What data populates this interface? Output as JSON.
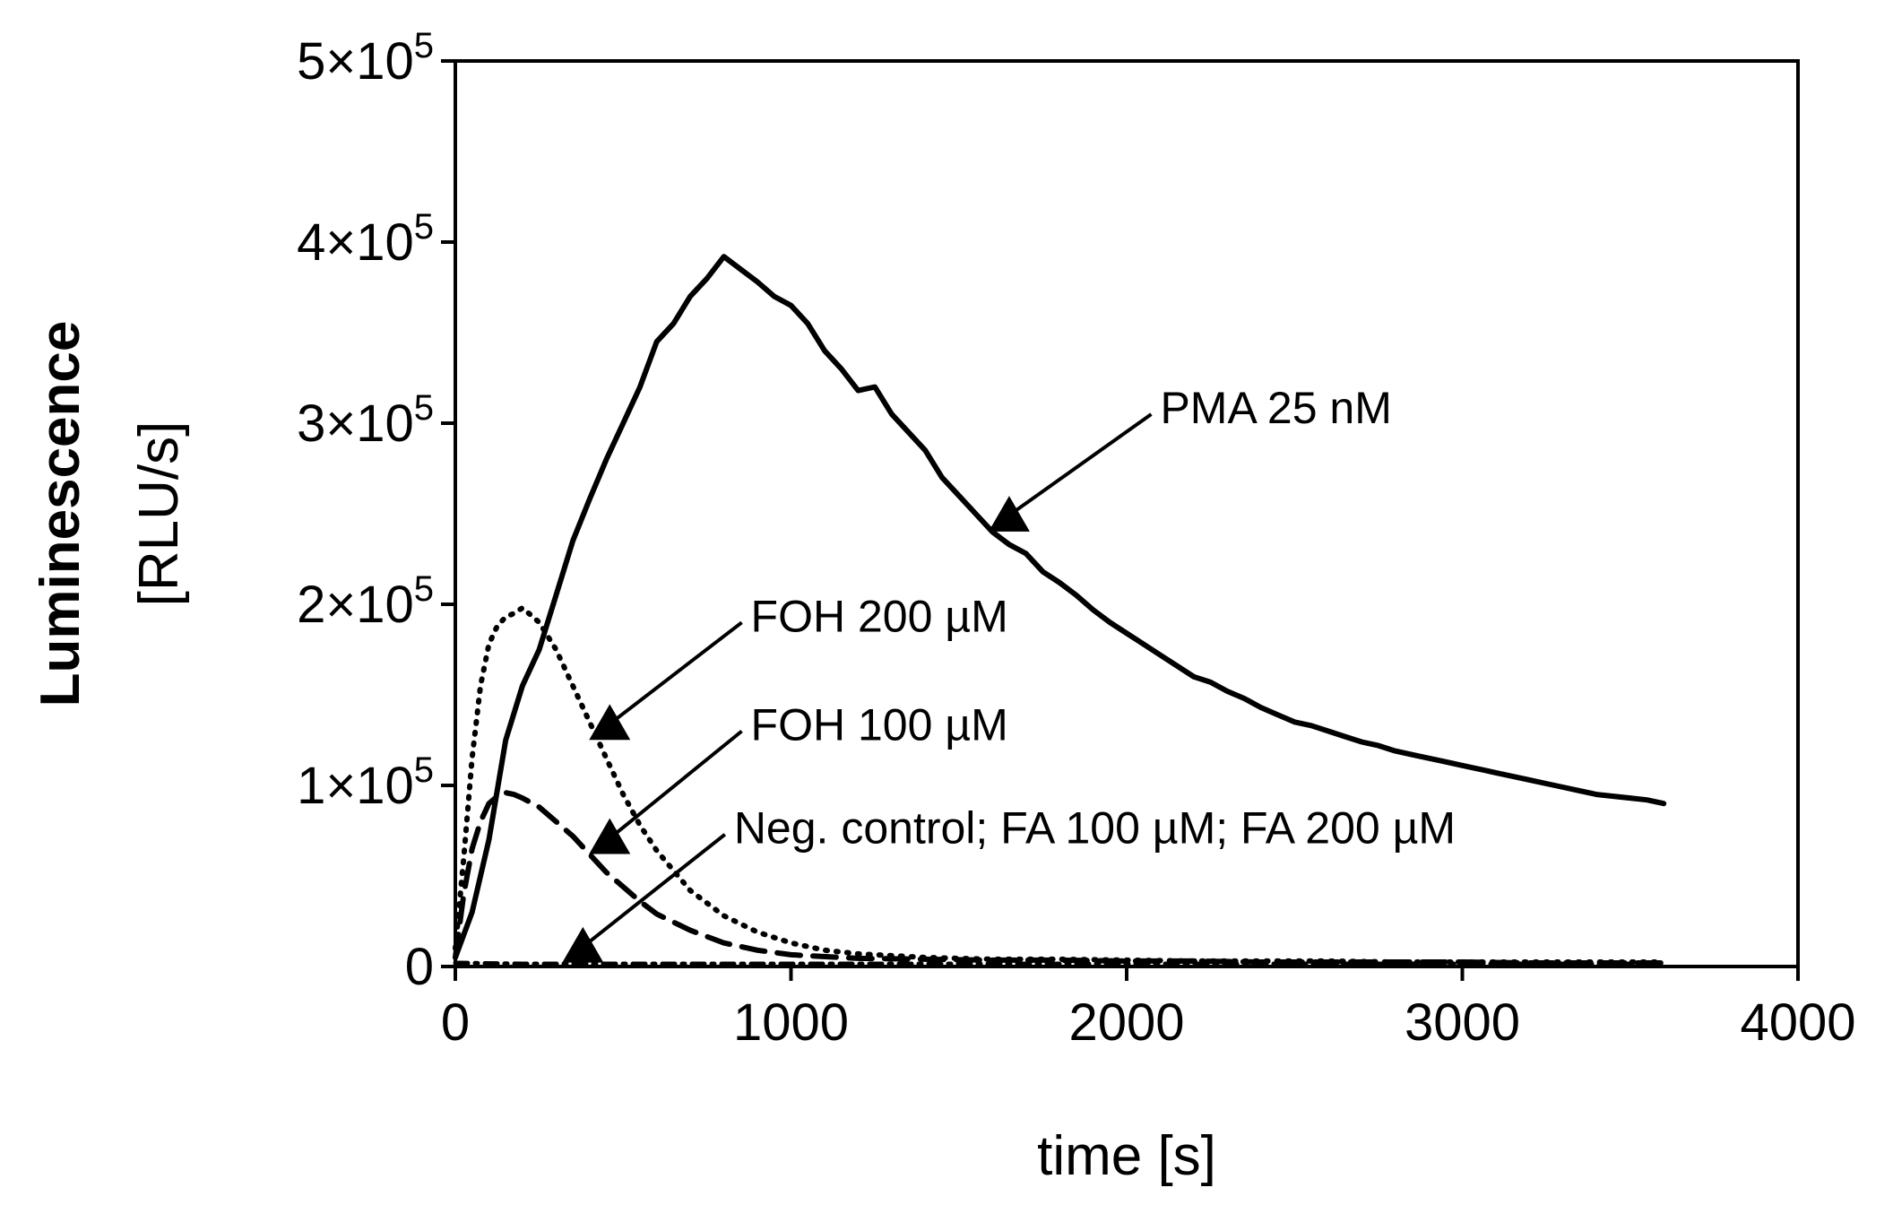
{
  "chart_data": {
    "type": "line",
    "title": "",
    "xlabel": "time [s]",
    "ylabel_line1": "Luminescence",
    "ylabel_line2": "[RLU/s]",
    "xlim": [
      0,
      4000
    ],
    "ylim": [
      0,
      500000
    ],
    "x_ticks": [
      0,
      1000,
      2000,
      3000,
      4000
    ],
    "x_tick_labels": [
      "0",
      "1000",
      "2000",
      "3000",
      "4000"
    ],
    "y_ticks": [
      0,
      100000,
      200000,
      300000,
      400000,
      500000
    ],
    "y_tick_labels": [
      {
        "base": "0",
        "exp": ""
      },
      {
        "base": "1×10",
        "exp": "5"
      },
      {
        "base": "2×10",
        "exp": "5"
      },
      {
        "base": "3×10",
        "exp": "5"
      },
      {
        "base": "4×10",
        "exp": "5"
      },
      {
        "base": "5×10",
        "exp": "5"
      }
    ],
    "grid": false,
    "legend": "none (direct annotations with arrows)",
    "colors": {
      "line": "#000000",
      "axis": "#000000"
    },
    "series": [
      {
        "name": "PMA 25 nM",
        "style": "solid",
        "x": [
          0,
          50,
          100,
          150,
          200,
          250,
          300,
          350,
          400,
          450,
          500,
          550,
          600,
          650,
          700,
          750,
          800,
          850,
          900,
          950,
          1000,
          1050,
          1100,
          1150,
          1200,
          1250,
          1300,
          1350,
          1400,
          1450,
          1500,
          1550,
          1600,
          1650,
          1700,
          1750,
          1800,
          1850,
          1900,
          1950,
          2000,
          2050,
          2100,
          2150,
          2200,
          2250,
          2300,
          2350,
          2400,
          2450,
          2500,
          2550,
          2600,
          2650,
          2700,
          2750,
          2800,
          2850,
          2900,
          2950,
          3000,
          3050,
          3100,
          3150,
          3200,
          3250,
          3300,
          3350,
          3400,
          3450,
          3500,
          3550,
          3600
        ],
        "y": [
          5000,
          30000,
          70000,
          125000,
          155000,
          175000,
          205000,
          235000,
          258000,
          280000,
          300000,
          320000,
          345000,
          355000,
          370000,
          380000,
          392000,
          385000,
          378000,
          370000,
          365000,
          355000,
          340000,
          330000,
          318000,
          320000,
          305000,
          295000,
          285000,
          270000,
          260000,
          250000,
          240000,
          233000,
          228000,
          218000,
          212000,
          205000,
          197000,
          190000,
          184000,
          178000,
          172000,
          166000,
          160000,
          157000,
          152000,
          148000,
          143000,
          139000,
          135000,
          133000,
          130000,
          127000,
          124000,
          122000,
          119000,
          117000,
          115000,
          113000,
          111000,
          109000,
          107000,
          105000,
          103000,
          101000,
          99000,
          97000,
          95000,
          94000,
          93000,
          92000,
          90000
        ]
      },
      {
        "name": "FOH 200 µM",
        "style": "dotted",
        "x": [
          0,
          25,
          50,
          75,
          100,
          125,
          150,
          175,
          200,
          250,
          300,
          350,
          400,
          450,
          500,
          550,
          600,
          700,
          800,
          900,
          1000,
          1100,
          1200,
          1400,
          1600,
          1800,
          2000,
          2200,
          2400,
          2600,
          2800,
          3000,
          3200,
          3400,
          3600
        ],
        "y": [
          10000,
          60000,
          115000,
          155000,
          178000,
          188000,
          193000,
          195000,
          198000,
          190000,
          175000,
          155000,
          135000,
          115000,
          95000,
          78000,
          64000,
          42000,
          28000,
          19000,
          13000,
          9000,
          7000,
          5000,
          4000,
          4000,
          3500,
          3000,
          3000,
          3000,
          2500,
          2500,
          2500,
          2500,
          2500
        ]
      },
      {
        "name": "FOH 100 µM",
        "style": "dashed",
        "x": [
          0,
          25,
          50,
          75,
          100,
          125,
          150,
          175,
          200,
          250,
          300,
          350,
          400,
          450,
          500,
          550,
          600,
          700,
          800,
          900,
          1000,
          1200,
          1400,
          1600,
          1800,
          2000,
          2200,
          2400,
          2600,
          2800,
          3000,
          3200,
          3400,
          3600
        ],
        "y": [
          5000,
          40000,
          65000,
          80000,
          90000,
          94000,
          96000,
          95000,
          93000,
          88000,
          80000,
          72000,
          62000,
          52000,
          44000,
          36000,
          29000,
          20000,
          13000,
          9000,
          6500,
          4500,
          4000,
          3500,
          3500,
          3000,
          3000,
          2500,
          2500,
          2500,
          2500,
          2000,
          2000,
          2000
        ]
      },
      {
        "name": "Neg. control; FA 100 µM; FA 200 µM",
        "style": "dash-dot",
        "x": [
          0,
          200,
          400,
          600,
          800,
          1000,
          1200,
          1400,
          1600,
          1800,
          2000,
          2200,
          2400,
          2600,
          2800,
          3000,
          3200,
          3400,
          3600
        ],
        "y": [
          2000,
          1500,
          1500,
          1500,
          1500,
          1500,
          1500,
          1500,
          1500,
          1500,
          1500,
          1500,
          1500,
          1500,
          1500,
          1500,
          1500,
          1500,
          1500
        ]
      }
    ],
    "annotations": [
      {
        "text": "PMA 25 nM",
        "arrow_tip": [
          1650,
          250000
        ],
        "text_anchor_data": [
          2100,
          300000
        ]
      },
      {
        "text": "FOH 200 µM",
        "arrow_tip": [
          460,
          135000
        ],
        "text_anchor_data": [
          880,
          185000
        ]
      },
      {
        "text": "FOH 100 µM",
        "arrow_tip": [
          460,
          72000
        ],
        "text_anchor_data": [
          880,
          125000
        ]
      },
      {
        "text": "Neg. control; FA 100 µM; FA 200 µM",
        "arrow_tip": [
          380,
          12000
        ],
        "text_anchor_data": [
          830,
          68000
        ]
      }
    ]
  }
}
